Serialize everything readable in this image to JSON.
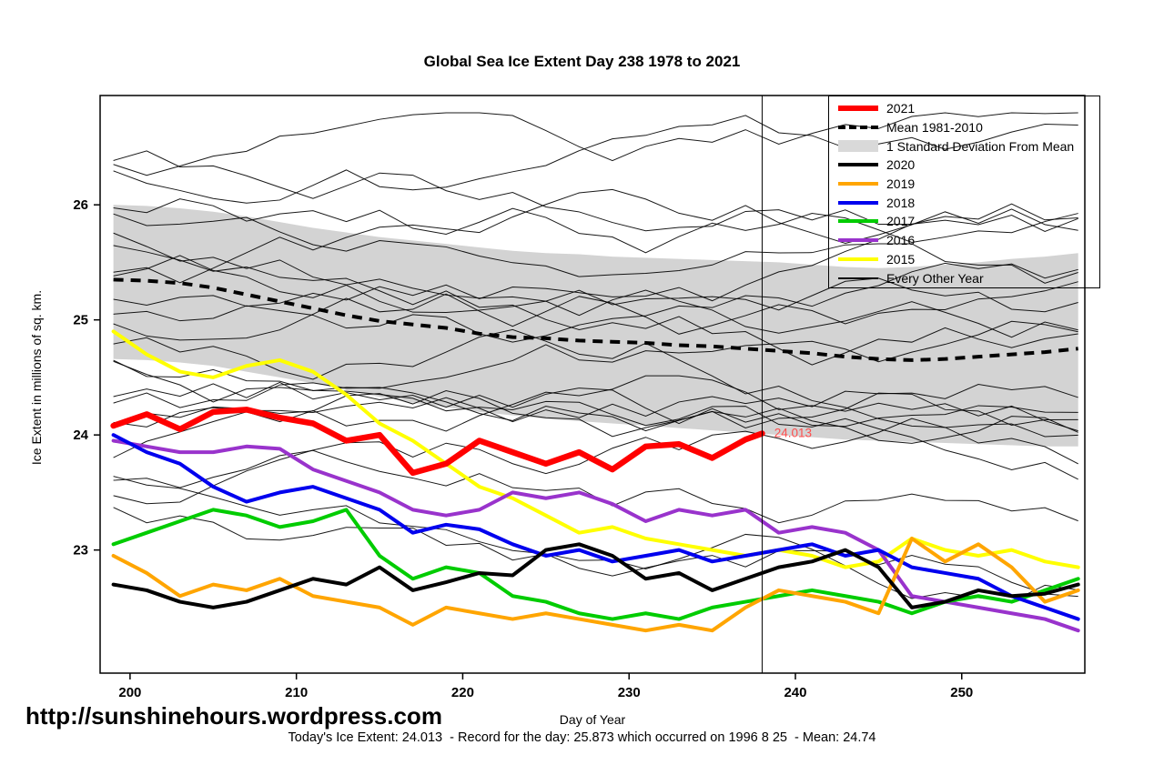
{
  "title": "Global Sea Ice Extent Day 238 1978 to 2021",
  "footer": {
    "site": "http://sunshinehours.wordpress.com",
    "stats": "Today's Ice Extent: 24.013  - Record for the day: 25.873 which occurred on 1996 8 25  - Mean: 24.74"
  },
  "chart_data": {
    "type": "line",
    "title": "Global Sea Ice Extent Day 238 1978 to 2021",
    "xlabel": "Day of Year",
    "ylabel": "Ice Extent in millions of sq. km.",
    "xlim": [
      198.2,
      257.4
    ],
    "ylim": [
      21.93,
      26.95
    ],
    "xticks": [
      200,
      210,
      220,
      230,
      240,
      250
    ],
    "yticks": [
      23,
      24,
      25,
      26
    ],
    "grid": false,
    "marker_day": 238,
    "annotation": {
      "text": "24.013",
      "x": 238.4,
      "y": 24.013,
      "color": "#ff4d4d"
    },
    "x": [
      199,
      201,
      203,
      205,
      207,
      209,
      211,
      213,
      215,
      217,
      219,
      221,
      223,
      225,
      227,
      229,
      231,
      233,
      235,
      237,
      239,
      241,
      243,
      245,
      247,
      249,
      251,
      253,
      255,
      257
    ],
    "band": {
      "label": "1 Standard Deviation From Mean",
      "color": "#D3D3D3",
      "upper": [
        26.0,
        25.99,
        25.97,
        25.94,
        25.9,
        25.85,
        25.8,
        25.76,
        25.72,
        25.69,
        25.66,
        25.63,
        25.6,
        25.58,
        25.57,
        25.55,
        25.54,
        25.53,
        25.52,
        25.51,
        25.5,
        25.48,
        25.46,
        25.45,
        25.46,
        25.48,
        25.5,
        25.53,
        25.55,
        25.58
      ],
      "lower": [
        24.66,
        24.65,
        24.63,
        24.6,
        24.55,
        24.5,
        24.45,
        24.39,
        24.33,
        24.28,
        24.24,
        24.2,
        24.17,
        24.14,
        24.12,
        24.1,
        24.08,
        24.06,
        24.04,
        24.02,
        24.0,
        23.98,
        23.96,
        23.95,
        23.94,
        23.93,
        23.92,
        23.91,
        23.9,
        23.9
      ]
    },
    "mean": {
      "label": "Mean 1981-2010",
      "color": "#000000",
      "style": "dashed",
      "values": [
        25.35,
        25.34,
        25.32,
        25.28,
        25.22,
        25.16,
        25.1,
        25.04,
        24.99,
        24.96,
        24.93,
        24.88,
        24.85,
        24.84,
        24.82,
        24.81,
        24.8,
        24.78,
        24.77,
        24.75,
        24.73,
        24.71,
        24.68,
        24.66,
        24.65,
        24.66,
        24.68,
        24.7,
        24.72,
        24.75
      ]
    },
    "series": [
      {
        "name": "2015",
        "color": "#FFFF00",
        "width": 4,
        "values": [
          24.9,
          24.7,
          24.55,
          24.5,
          24.6,
          24.65,
          24.55,
          24.35,
          24.1,
          23.95,
          23.75,
          23.55,
          23.45,
          23.3,
          23.15,
          23.2,
          23.1,
          23.05,
          23.0,
          22.95,
          23.0,
          22.95,
          22.85,
          22.9,
          23.1,
          23.0,
          22.95,
          23.0,
          22.9,
          22.85
        ]
      },
      {
        "name": "2016",
        "color": "#9933CC",
        "width": 4,
        "values": [
          23.95,
          23.9,
          23.85,
          23.85,
          23.9,
          23.88,
          23.7,
          23.6,
          23.5,
          23.35,
          23.3,
          23.35,
          23.5,
          23.45,
          23.5,
          23.4,
          23.25,
          23.35,
          23.3,
          23.35,
          23.15,
          23.2,
          23.15,
          23.0,
          22.6,
          22.55,
          22.5,
          22.45,
          22.4,
          22.3
        ]
      },
      {
        "name": "2017",
        "color": "#00CC00",
        "width": 4,
        "values": [
          23.05,
          23.15,
          23.25,
          23.35,
          23.3,
          23.2,
          23.25,
          23.35,
          22.95,
          22.75,
          22.85,
          22.8,
          22.6,
          22.55,
          22.45,
          22.4,
          22.45,
          22.4,
          22.5,
          22.55,
          22.6,
          22.65,
          22.6,
          22.55,
          22.45,
          22.55,
          22.6,
          22.55,
          22.65,
          22.75
        ]
      },
      {
        "name": "2018",
        "color": "#0000EE",
        "width": 4,
        "values": [
          24.0,
          23.85,
          23.75,
          23.55,
          23.42,
          23.5,
          23.55,
          23.45,
          23.35,
          23.15,
          23.22,
          23.18,
          23.05,
          22.95,
          23.0,
          22.9,
          22.95,
          23.0,
          22.9,
          22.95,
          23.0,
          23.05,
          22.95,
          23.0,
          22.85,
          22.8,
          22.75,
          22.6,
          22.5,
          22.4
        ]
      },
      {
        "name": "2019",
        "color": "#FFA500",
        "width": 4,
        "values": [
          22.95,
          22.8,
          22.6,
          22.7,
          22.65,
          22.75,
          22.6,
          22.55,
          22.5,
          22.35,
          22.5,
          22.45,
          22.4,
          22.45,
          22.4,
          22.35,
          22.3,
          22.35,
          22.3,
          22.5,
          22.65,
          22.6,
          22.55,
          22.45,
          23.1,
          22.9,
          23.05,
          22.85,
          22.55,
          22.65
        ]
      },
      {
        "name": "2020",
        "color": "#000000",
        "width": 4,
        "values": [
          22.7,
          22.65,
          22.55,
          22.5,
          22.55,
          22.65,
          22.75,
          22.7,
          22.85,
          22.65,
          22.72,
          22.8,
          22.78,
          23.0,
          23.05,
          22.95,
          22.75,
          22.8,
          22.65,
          22.75,
          22.85,
          22.9,
          23.0,
          22.85,
          22.5,
          22.55,
          22.65,
          22.6,
          22.62,
          22.7
        ]
      },
      {
        "name": "2021",
        "color": "#FF0000",
        "width": 6.5,
        "x": [
          199,
          201,
          203,
          205,
          207,
          209,
          211,
          213,
          215,
          217,
          219,
          221,
          223,
          225,
          227,
          229,
          231,
          233,
          235,
          237,
          238
        ],
        "values": [
          24.08,
          24.18,
          24.05,
          24.2,
          24.22,
          24.15,
          24.1,
          23.95,
          24.0,
          23.67,
          23.75,
          23.95,
          23.85,
          23.75,
          23.85,
          23.7,
          23.9,
          23.92,
          23.8,
          23.96,
          24.013
        ]
      }
    ],
    "background": {
      "label": "Every Other Year",
      "color": "#000000",
      "count": 24,
      "seed": 20210826
    },
    "legend": {
      "position": "top-right",
      "entries": [
        {
          "label": "2021",
          "swatch": "thick-line",
          "color": "#FF0000"
        },
        {
          "label": "Mean 1981-2010",
          "swatch": "dashed-line",
          "color": "#000000"
        },
        {
          "label": "1 Standard Deviation From Mean",
          "swatch": "box",
          "color": "#D9D9D9"
        },
        {
          "label": "2020",
          "swatch": "line",
          "color": "#000000"
        },
        {
          "label": "2019",
          "swatch": "line",
          "color": "#FFA500"
        },
        {
          "label": "2018",
          "swatch": "line",
          "color": "#0000EE"
        },
        {
          "label": "2017",
          "swatch": "line",
          "color": "#00CC00"
        },
        {
          "label": "2016",
          "swatch": "line",
          "color": "#9933CC"
        },
        {
          "label": "2015",
          "swatch": "line",
          "color": "#FFFF00"
        },
        {
          "label": "Every Other Year",
          "swatch": "thin-line",
          "color": "#000000"
        }
      ]
    }
  }
}
